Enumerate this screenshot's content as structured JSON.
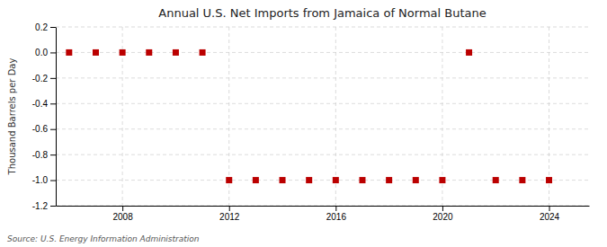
{
  "chart_data": {
    "type": "scatter",
    "title": "Annual U.S. Net Imports from Jamaica of Normal Butane",
    "ylabel": "Thousand Barrels per Day",
    "source": "Source: U.S. Energy Information Administration",
    "x": [
      2006,
      2007,
      2008,
      2009,
      2010,
      2011,
      2012,
      2013,
      2014,
      2015,
      2016,
      2017,
      2018,
      2019,
      2020,
      2021,
      2022,
      2023,
      2024
    ],
    "values": [
      0,
      0,
      0,
      0,
      0,
      0,
      -1,
      -1,
      -1,
      -1,
      -1,
      -1,
      -1,
      -1,
      -1,
      0,
      -1,
      -1,
      -1
    ],
    "color": "#BB0000",
    "marker": "square",
    "xlim": [
      2005.5,
      2025.5
    ],
    "xticks": [
      2008,
      2012,
      2016,
      2020,
      2024
    ],
    "ylim": [
      -1.2,
      0.2
    ],
    "yticks": [
      0.2,
      {
        "value": 0,
        "label": "0.0"
      },
      -0.2,
      -0.4,
      -0.6,
      -0.8,
      {
        "value": -1,
        "label": "-1.0"
      },
      -1.2
    ],
    "grid": true
  }
}
